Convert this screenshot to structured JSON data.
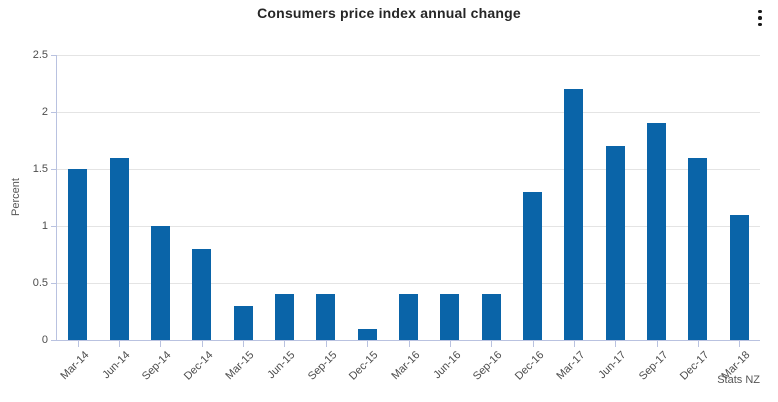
{
  "header": {
    "title": "Consumers price index annual change"
  },
  "chart_data": {
    "type": "bar",
    "title": "Consumers price index annual change",
    "xlabel": "",
    "ylabel": "Percent",
    "ylim": [
      0,
      2.5
    ],
    "yticks": [
      0,
      0.5,
      1,
      1.5,
      2,
      2.5
    ],
    "ytick_labels": [
      "0",
      "0.5",
      "1",
      "1.5",
      "2",
      "2.5"
    ],
    "grid": "horizontal",
    "legend": false,
    "categories": [
      "Mar-14",
      "Jun-14",
      "Sep-14",
      "Dec-14",
      "Mar-15",
      "Jun-15",
      "Sep-15",
      "Dec-15",
      "Mar-16",
      "Jun-16",
      "Sep-16",
      "Dec-16",
      "Mar-17",
      "Jun-17",
      "Sep-17",
      "Dec-17",
      "Mar-18"
    ],
    "values": [
      1.5,
      1.6,
      1.0,
      0.8,
      0.3,
      0.4,
      0.4,
      0.1,
      0.4,
      0.4,
      0.4,
      1.3,
      2.2,
      1.7,
      1.9,
      1.6,
      1.1
    ]
  },
  "attribution": "Stats NZ",
  "colors": {
    "bar": "#0a64a8",
    "gridline": "#e4e4e4",
    "axis": "#b9c2e0",
    "title_text": "#262626",
    "tick_text": "#4d4d4d",
    "menu_icon": "#1a1a1a"
  },
  "icons": {
    "menu": "kebab-menu-icon"
  }
}
